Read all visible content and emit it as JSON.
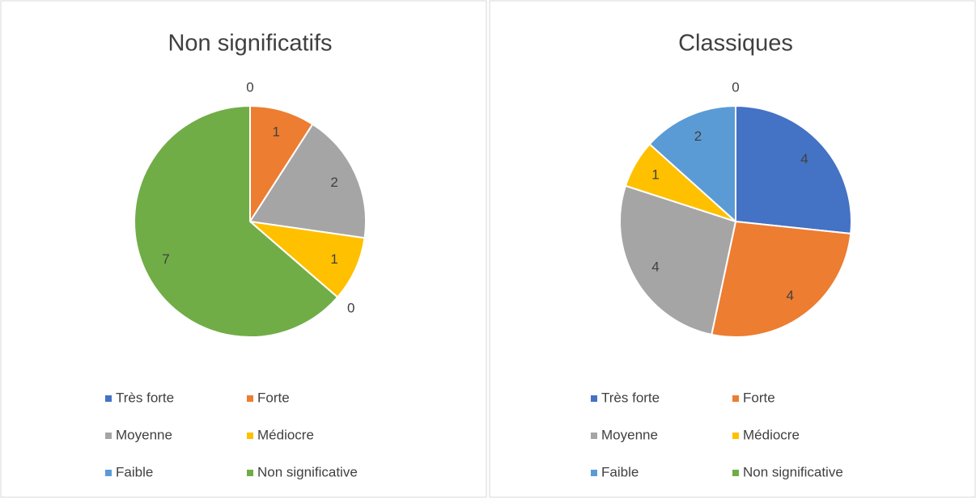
{
  "chart_data": [
    {
      "type": "pie",
      "title": "Non significatifs",
      "categories": [
        "Très forte",
        "Forte",
        "Moyenne",
        "Médiocre",
        "Faible",
        "Non significative"
      ],
      "values": [
        0,
        1,
        2,
        1,
        0,
        7
      ],
      "colors": [
        "#4472c4",
        "#ed7d31",
        "#a5a5a5",
        "#ffc000",
        "#5b9bd5",
        "#70ad47"
      ],
      "legend": "bottom"
    },
    {
      "type": "pie",
      "title": "Classiques",
      "categories": [
        "Très forte",
        "Forte",
        "Moyenne",
        "Médiocre",
        "Faible",
        "Non significative"
      ],
      "values": [
        4,
        4,
        4,
        1,
        2,
        0
      ],
      "colors": [
        "#4472c4",
        "#ed7d31",
        "#a5a5a5",
        "#ffc000",
        "#5b9bd5",
        "#70ad47"
      ],
      "legend": "bottom"
    }
  ]
}
